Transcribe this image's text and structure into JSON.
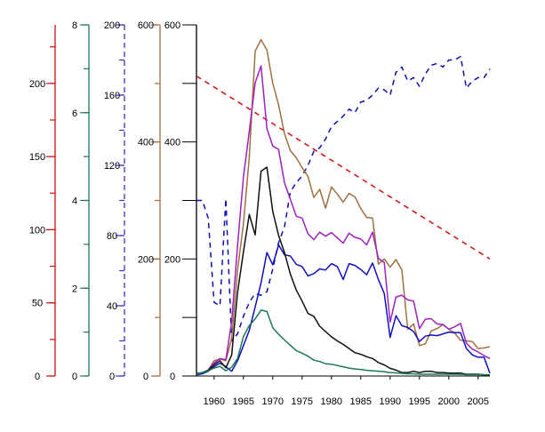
{
  "chart_data": {
    "type": "line",
    "title": "",
    "xlabel": "",
    "x_ticks": [
      1960,
      1965,
      1970,
      1975,
      1980,
      1985,
      1990,
      1995,
      2000,
      2005
    ],
    "xlim": [
      1957,
      2007
    ],
    "axes": [
      {
        "id": "red",
        "color": "#d01010",
        "ylim": [
          0,
          240
        ],
        "ticks": [
          0,
          50,
          100,
          150,
          200
        ],
        "dashed": false
      },
      {
        "id": "green",
        "color": "#1e7a50",
        "ylim": [
          0,
          8
        ],
        "ticks": [
          0,
          2,
          4,
          6,
          8
        ],
        "dashed": false
      },
      {
        "id": "blue",
        "color": "#3838c0",
        "ylim": [
          0,
          200
        ],
        "ticks": [
          0,
          40,
          80,
          120,
          160,
          200
        ],
        "dashed": true
      },
      {
        "id": "brown",
        "color": "#a07040",
        "ylim": [
          0,
          600
        ],
        "ticks": [
          0,
          200,
          400,
          600
        ],
        "dashed": false
      },
      {
        "id": "main",
        "color": "#000000",
        "ylim": [
          0,
          600
        ],
        "ticks": [
          0,
          200,
          400,
          600
        ],
        "dashed": false
      }
    ],
    "series": [
      {
        "axis": "red",
        "color": "#d01010",
        "style": "dashed",
        "x": [
          1957,
          2007
        ],
        "values": [
          205,
          80
        ]
      },
      {
        "axis": "blue",
        "color": "#1010b0",
        "style": "dashed",
        "x": [
          1957,
          1958,
          1959,
          1960,
          1961,
          1962,
          1963,
          1964,
          1965,
          1966,
          1967,
          1968,
          1969,
          1970,
          1971,
          1972,
          1973,
          1974,
          1975,
          1976,
          1977,
          1978,
          1979,
          1980,
          1981,
          1982,
          1983,
          1984,
          1985,
          1986,
          1987,
          1988,
          1989,
          1990,
          1991,
          1992,
          1993,
          1994,
          1995,
          1996,
          1997,
          1998,
          1999,
          2000,
          2001,
          2002,
          2003,
          2004,
          2005,
          2006,
          2007
        ],
        "values": [
          100,
          100,
          90,
          42,
          40,
          101,
          20,
          24,
          34,
          42,
          47,
          46,
          48,
          61,
          76,
          85,
          105,
          110,
          114,
          120,
          128,
          130,
          135,
          142,
          145,
          148,
          152,
          150,
          156,
          157,
          160,
          164,
          163,
          160,
          173,
          176,
          168,
          170,
          165,
          172,
          177,
          178,
          176,
          180,
          180,
          182,
          164,
          168,
          170,
          170,
          175
        ]
      },
      {
        "axis": "brown",
        "color": "#a07040",
        "style": "solid",
        "x": [
          1957,
          1958,
          1959,
          1960,
          1961,
          1962,
          1963,
          1964,
          1965,
          1966,
          1967,
          1968,
          1969,
          1970,
          1971,
          1972,
          1973,
          1974,
          1975,
          1976,
          1977,
          1978,
          1979,
          1980,
          1981,
          1982,
          1983,
          1984,
          1985,
          1986,
          1987,
          1988,
          1989,
          1990,
          1991,
          1992,
          1993,
          1994,
          1995,
          1996,
          1997,
          1998,
          1999,
          2000,
          2001,
          2002,
          2003,
          2004,
          2005,
          2006,
          2007
        ],
        "values": [
          2,
          4,
          10,
          26,
          29,
          26,
          64,
          181,
          260,
          374,
          555,
          575,
          557,
          500,
          463,
          414,
          385,
          373,
          356,
          341,
          305,
          319,
          287,
          323,
          311,
          297,
          312,
          306,
          286,
          271,
          270,
          191,
          200,
          186,
          199,
          181,
          80,
          89,
          52,
          55,
          77,
          81,
          88,
          80,
          73,
          61,
          60,
          59,
          47,
          48,
          50
        ]
      },
      {
        "axis": "main",
        "color": "#a020c0",
        "style": "solid",
        "x": [
          1957,
          1958,
          1959,
          1960,
          1961,
          1962,
          1963,
          1964,
          1965,
          1966,
          1967,
          1968,
          1969,
          1970,
          1971,
          1972,
          1973,
          1974,
          1975,
          1976,
          1977,
          1978,
          1979,
          1980,
          1981,
          1982,
          1983,
          1984,
          1985,
          1986,
          1987,
          1988,
          1989,
          1990,
          1991,
          1992,
          1993,
          1994,
          1995,
          1996,
          1997,
          1998,
          1999,
          2000,
          2001,
          2002,
          2003,
          2004,
          2005,
          2006,
          2007
        ],
        "values": [
          2,
          4,
          10,
          22,
          30,
          28,
          93,
          223,
          340,
          418,
          501,
          530,
          423,
          393,
          387,
          330,
          302,
          273,
          270,
          243,
          233,
          246,
          239,
          245,
          236,
          227,
          244,
          237,
          234,
          224,
          246,
          201,
          194,
          92,
          135,
          138,
          130,
          128,
          81,
          97,
          98,
          89,
          88,
          80,
          84,
          90,
          56,
          46,
          41,
          35,
          30
        ]
      },
      {
        "axis": "main",
        "color": "#1010c0",
        "style": "solid",
        "x": [
          1957,
          1958,
          1959,
          1960,
          1961,
          1962,
          1963,
          1964,
          1965,
          1966,
          1967,
          1968,
          1969,
          1970,
          1971,
          1972,
          1973,
          1974,
          1975,
          1976,
          1977,
          1978,
          1979,
          1980,
          1981,
          1982,
          1983,
          1984,
          1985,
          1986,
          1987,
          1988,
          1989,
          1990,
          1991,
          1992,
          1993,
          1994,
          1995,
          1996,
          1997,
          1998,
          1999,
          2000,
          2001,
          2002,
          2003,
          2004,
          2005,
          2006,
          2007
        ],
        "values": [
          2,
          4,
          8,
          16,
          22,
          16,
          8,
          26,
          52,
          78,
          118,
          159,
          211,
          190,
          224,
          207,
          205,
          191,
          187,
          171,
          175,
          183,
          181,
          192,
          187,
          165,
          192,
          189,
          182,
          173,
          193,
          165,
          141,
          66,
          103,
          86,
          83,
          76,
          59,
          68,
          70,
          69,
          72,
          75,
          74,
          74,
          47,
          36,
          32,
          32,
          5
        ]
      },
      {
        "axis": "main",
        "color": "#101010",
        "style": "solid",
        "x": [
          1957,
          1958,
          1959,
          1960,
          1961,
          1962,
          1963,
          1964,
          1965,
          1966,
          1967,
          1968,
          1969,
          1970,
          1971,
          1972,
          1973,
          1974,
          1975,
          1976,
          1977,
          1978,
          1979,
          1980,
          1981,
          1982,
          1983,
          1984,
          1985,
          1986,
          1987,
          1988,
          1989,
          1990,
          1991,
          1992,
          1993,
          1994,
          1995,
          1996,
          1997,
          1998,
          1999,
          2000,
          2001,
          2002,
          2003,
          2004,
          2005,
          2006,
          2007
        ],
        "values": [
          4,
          6,
          10,
          19,
          26,
          14,
          36,
          143,
          212,
          276,
          241,
          350,
          357,
          281,
          240,
          211,
          174,
          147,
          128,
          107,
          102,
          85,
          76,
          67,
          60,
          54,
          47,
          40,
          37,
          33,
          30,
          23,
          19,
          13,
          10,
          6,
          6,
          8,
          6,
          8,
          8,
          6,
          6,
          5,
          5,
          5,
          3,
          3,
          3,
          2,
          2
        ]
      },
      {
        "axis": "green",
        "color": "#1e7a50",
        "style": "solid",
        "x": [
          1957,
          1958,
          1959,
          1960,
          1961,
          1962,
          1963,
          1964,
          1965,
          1966,
          1967,
          1968,
          1969,
          1970,
          1971,
          1972,
          1973,
          1974,
          1975,
          1976,
          1977,
          1978,
          1979,
          1980,
          1981,
          1982,
          1983,
          1984,
          1985,
          1986,
          1987,
          1988,
          1989,
          1990,
          1991,
          1992,
          1993,
          1994,
          1995,
          1996,
          1997,
          1998,
          1999,
          2000,
          2001,
          2002,
          2003,
          2004,
          2005,
          2006,
          2007
        ],
        "values": [
          0.04,
          0.08,
          0.12,
          0.18,
          0.22,
          0.12,
          0.2,
          0.4,
          0.9,
          1.15,
          1.3,
          1.5,
          1.47,
          1.1,
          0.95,
          0.82,
          0.7,
          0.58,
          0.52,
          0.45,
          0.36,
          0.33,
          0.28,
          0.27,
          0.24,
          0.21,
          0.18,
          0.16,
          0.15,
          0.13,
          0.12,
          0.11,
          0.1,
          0.08,
          0.07,
          0.06,
          0.05,
          0.05,
          0.04,
          0.04,
          0.04,
          0.04,
          0.04,
          0.04,
          0.04,
          0.04,
          0.03,
          0.03,
          0.03,
          0.03,
          0.03
        ]
      }
    ]
  }
}
